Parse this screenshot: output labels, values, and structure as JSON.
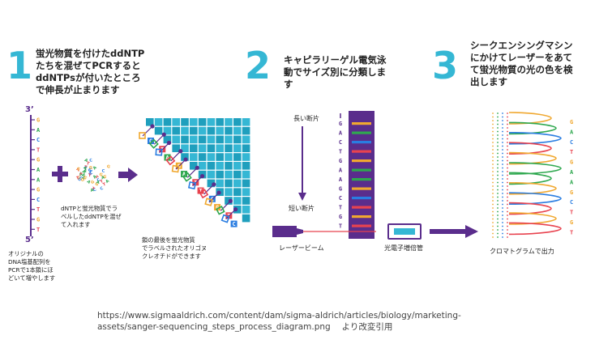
{
  "steps": [
    {
      "num": "1",
      "title": "蛍光物質を付けたddNTP\nたちを混ぜてPCRすると\nddNTPsが付いたところ\nで伸長が止まります"
    },
    {
      "num": "2",
      "title": "キャピラリーゲル電気泳\n動でサイズ別に分類しま\nす"
    },
    {
      "num": "3",
      "title": "シークエンシングマシン\nにかけてレーザーをあて\nて蛍光物質の光の色を検\n出します"
    }
  ],
  "panel1": {
    "strand_top": "3’",
    "strand_bottom": "5’",
    "template_bases": [
      "G",
      "A",
      "C",
      "T",
      "G",
      "A",
      "A",
      "G",
      "C",
      "T",
      "G",
      "T"
    ],
    "original_caption": "オリジナルの\nDNA塩基配列を\nPCRで1本鎖にほ\nどいて増やします",
    "ddntp_caption": "dNTPと蛍光物質でラ\nベルしたddNTPを混ぜ\nて入れます",
    "fragments_caption": "鎖の最後を蛍光物質\nでラベルされたオリゴヌ\nクレオチドができます",
    "fragment_tags": [
      "C",
      "T",
      "A",
      "G",
      "A",
      "T",
      "T",
      "C",
      "G",
      "T",
      "C"
    ]
  },
  "panel2": {
    "long_label": "長い断片",
    "short_label": "短い断片",
    "lane_bases": [
      "G",
      "A",
      "C",
      "T",
      "G",
      "A",
      "A",
      "G",
      "C",
      "T",
      "G",
      "T"
    ],
    "laser_label": "レーザービーム",
    "pmt_label": "光電子増倍管"
  },
  "panel3": {
    "chromatogram_label": "クロマトグラムで出力",
    "called_bases": [
      "G",
      "A",
      "C",
      "T",
      "G",
      "A",
      "A",
      "G",
      "C",
      "T",
      "G",
      "T"
    ]
  },
  "colors": {
    "accent": "#35b7d4",
    "purple": "#5a2d8c",
    "A": "#2fa84f",
    "C": "#2a7de1",
    "G": "#f0a830",
    "T": "#e8434f"
  },
  "source": "https://www.sigmaaldrich.com/content/dam/sigma-aldrich/articles/biology/marketing-\nassets/sanger-sequencing_steps_process_diagram.png　 より改変引用"
}
